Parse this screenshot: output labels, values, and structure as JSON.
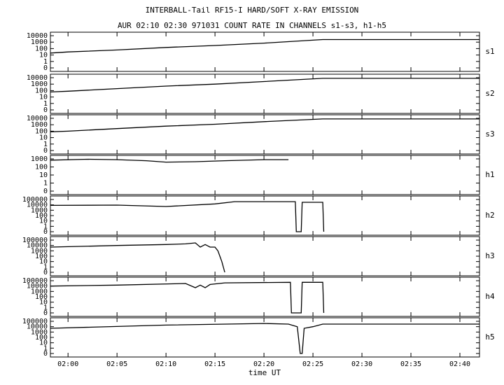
{
  "title": "INTERBALL-Tail RF15-I HARD/SOFT X-RAY EMISSION",
  "subtitle": "AUR 02:10 02:30 971031  COUNT RATE IN CHANNELS s1-s3, h1-h5",
  "chart_data": [
    {
      "type": "line",
      "label": "s1",
      "color": "#000000",
      "log_scale": true,
      "xlim": [
        -1.8,
        42
      ],
      "ylim": [
        0,
        10000
      ],
      "yticks": [
        0,
        1,
        10,
        100,
        1000,
        10000
      ],
      "x": [
        -1.8,
        0,
        5,
        10,
        15,
        20,
        26,
        42
      ],
      "values": [
        20,
        30,
        60,
        150,
        300,
        700,
        2500,
        2500
      ]
    },
    {
      "type": "line",
      "label": "s2",
      "color": "#000000",
      "log_scale": true,
      "xlim": [
        -1.8,
        42
      ],
      "ylim": [
        0,
        10000
      ],
      "yticks": [
        0,
        1,
        10,
        100,
        1000,
        10000
      ],
      "x": [
        -1.8,
        0,
        5,
        10,
        15,
        20,
        26,
        42
      ],
      "values": [
        60,
        80,
        200,
        500,
        1000,
        2500,
        8000,
        8000
      ]
    },
    {
      "type": "line",
      "label": "s3",
      "color": "#000000",
      "log_scale": true,
      "xlim": [
        -1.8,
        42
      ],
      "ylim": [
        0,
        10000
      ],
      "yticks": [
        0,
        1,
        10,
        100,
        1000,
        10000
      ],
      "x": [
        -1.8,
        0,
        5,
        10,
        15,
        20,
        26,
        42
      ],
      "values": [
        80,
        100,
        250,
        600,
        1200,
        3000,
        8000,
        8000
      ]
    },
    {
      "type": "line",
      "label": "h1",
      "color": "#000000",
      "log_scale": true,
      "xlim": [
        -1.8,
        42
      ],
      "ylim": [
        0,
        1000
      ],
      "yticks": [
        0,
        1,
        10,
        100,
        1000
      ],
      "x": [
        -1.8,
        2,
        5,
        8,
        10,
        13,
        16,
        20,
        22.5
      ],
      "values": [
        700,
        900,
        800,
        600,
        400,
        450,
        600,
        800,
        800
      ]
    },
    {
      "type": "line",
      "label": "h2",
      "color": "#000000",
      "log_scale": true,
      "xlim": [
        -1.8,
        42
      ],
      "ylim": [
        0,
        100000
      ],
      "yticks": [
        0,
        1,
        10,
        100,
        1000,
        10000,
        100000
      ],
      "x": [
        -1.8,
        5,
        10,
        15,
        17,
        23.2,
        23.3,
        23.8,
        23.9,
        26.0,
        26.1
      ],
      "values": [
        8000,
        9000,
        5000,
        15000,
        40000,
        40000,
        0,
        0,
        30000,
        30000,
        0
      ]
    },
    {
      "type": "line",
      "label": "h3",
      "color": "#000000",
      "log_scale": true,
      "xlim": [
        -1.8,
        42
      ],
      "ylim": [
        0,
        100000
      ],
      "yticks": [
        0,
        1,
        10,
        100,
        1000,
        10000,
        100000
      ],
      "x": [
        -1.8,
        5,
        10,
        12,
        13,
        13.5,
        14,
        14.5,
        15,
        15.3,
        15.5,
        15.7,
        16
      ],
      "values": [
        5000,
        10000,
        15000,
        20000,
        30000,
        5000,
        15000,
        5000,
        5000,
        1000,
        100,
        10,
        0
      ]
    },
    {
      "type": "line",
      "label": "h4",
      "color": "#000000",
      "log_scale": true,
      "xlim": [
        -1.8,
        42
      ],
      "ylim": [
        0,
        100000
      ],
      "yticks": [
        0,
        1,
        10,
        100,
        1000,
        10000,
        100000
      ],
      "x": [
        -1.8,
        5,
        12,
        13,
        13.5,
        14,
        14.5,
        16,
        22.7,
        22.8,
        23.8,
        23.9,
        26,
        26.1
      ],
      "values": [
        10000,
        15000,
        30000,
        5000,
        15000,
        5000,
        20000,
        40000,
        50000,
        0,
        0,
        50000,
        50000,
        0
      ]
    },
    {
      "type": "line",
      "label": "h5",
      "color": "#000000",
      "log_scale": true,
      "xlim": [
        -1.8,
        42
      ],
      "ylim": [
        0,
        100000
      ],
      "yticks": [
        0,
        1,
        10,
        100,
        1000,
        10000,
        100000
      ],
      "x": [
        -1.8,
        10,
        20,
        22.5,
        23.4,
        23.7,
        23.9,
        24.1,
        25,
        26,
        42
      ],
      "values": [
        5000,
        20000,
        40000,
        30000,
        10000,
        0,
        0,
        5000,
        10000,
        30000,
        30000
      ],
      "xlabel": "time UT",
      "xticks": [
        {
          "value": 0,
          "label": "02:00"
        },
        {
          "value": 5,
          "label": "02:05"
        },
        {
          "value": 10,
          "label": "02:10"
        },
        {
          "value": 15,
          "label": "02:15"
        },
        {
          "value": 20,
          "label": "02:20"
        },
        {
          "value": 25,
          "label": "02:25"
        },
        {
          "value": 30,
          "label": "02:30"
        },
        {
          "value": 35,
          "label": "02:35"
        },
        {
          "value": 40,
          "label": "02:40"
        }
      ]
    }
  ]
}
